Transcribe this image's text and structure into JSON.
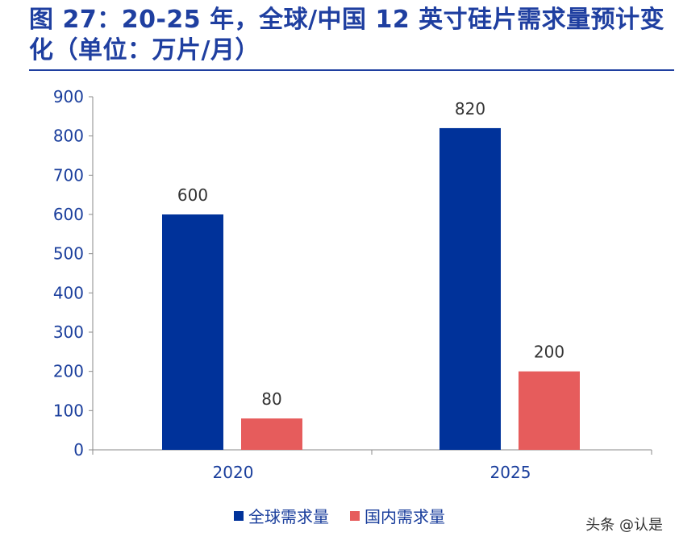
{
  "title": "图 27：20-25 年，全球/中国 12 英寸硅片需求量预计变化（单位：万片/月）",
  "watermark": "头条 @认是",
  "colors": {
    "title": "#1f3fa0",
    "axis_text": "#1a3e9c",
    "global": "#00329a",
    "china": "#e65c5c"
  },
  "chart_data": {
    "type": "bar",
    "categories": [
      "2020",
      "2025"
    ],
    "series": [
      {
        "name": "全球需求量",
        "values": [
          600,
          820
        ]
      },
      {
        "name": "国内需求量",
        "values": [
          80,
          200
        ]
      }
    ],
    "ylim": [
      0,
      900
    ],
    "yticks": [
      0,
      100,
      200,
      300,
      400,
      500,
      600,
      700,
      800,
      900
    ],
    "data_labels": [
      [
        "600",
        "820"
      ],
      [
        "80",
        "200"
      ]
    ],
    "legend_position": "bottom",
    "grid": false
  }
}
